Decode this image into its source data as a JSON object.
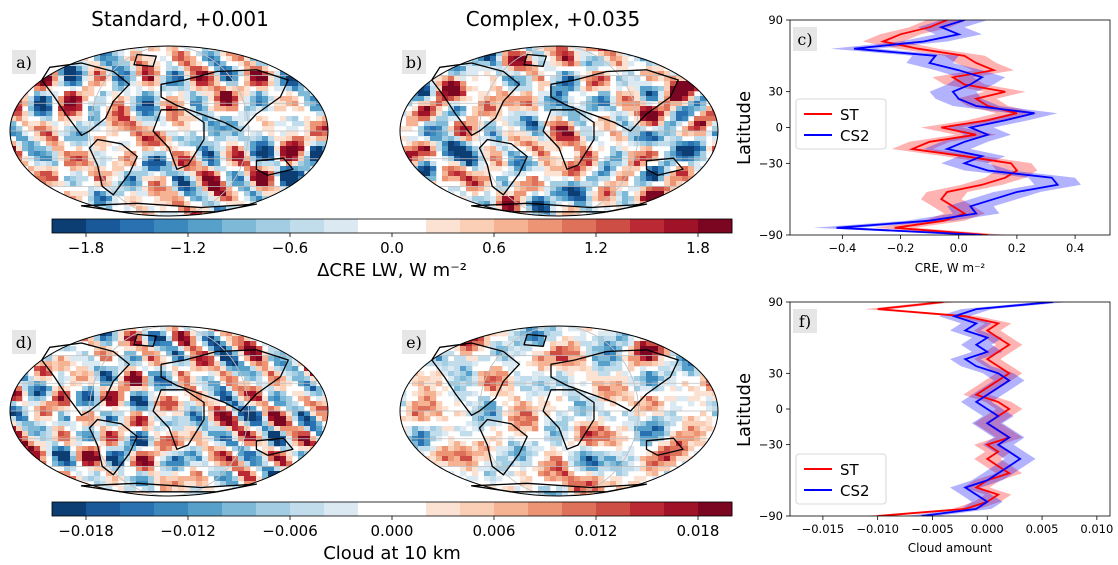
{
  "chart_data": [
    {
      "type": "heatmap",
      "panels": [
        {
          "letter": "a)",
          "title": "Standard, +0.001",
          "seed": 11
        },
        {
          "letter": "b)",
          "title": "Complex, +0.035",
          "seed": 23
        }
      ],
      "colorbar": {
        "label": "ΔCRE LW, W m⁻²",
        "vmin": -2.0,
        "vmax": 2.0,
        "levels": 20,
        "ticks": [
          -1.8,
          -1.2,
          -0.6,
          0.0,
          0.6,
          1.2,
          1.8
        ],
        "tick_labels": [
          "−1.8",
          "−1.2",
          "−0.6",
          "0.0",
          "0.6",
          "1.2",
          "1.8"
        ]
      }
    },
    {
      "type": "line",
      "letter": "c)",
      "xlabel": "CRE, W m⁻²",
      "ylabel": "Latitude",
      "xlim": [
        -0.58,
        0.52
      ],
      "ylim": [
        -90,
        90
      ],
      "xticks": [
        -0.4,
        -0.2,
        0.0,
        0.2,
        0.4
      ],
      "xtick_labels": [
        "−0.4",
        "−0.2",
        "0.0",
        "0.2",
        "0.4"
      ],
      "yticks": [
        -90,
        -30,
        0,
        30,
        90
      ],
      "ytick_labels": [
        "−90",
        "−30",
        "0",
        "30",
        "90"
      ],
      "legend_position": "center-left",
      "series": [
        {
          "name": "ST",
          "color": "#ff0000",
          "lat": [
            -90,
            -84,
            -78,
            -72,
            -66,
            -60,
            -54,
            -48,
            -42,
            -36,
            -30,
            -24,
            -18,
            -12,
            -6,
            0,
            6,
            12,
            18,
            24,
            30,
            36,
            42,
            48,
            54,
            60,
            66,
            72,
            78,
            84,
            90
          ],
          "x": [
            0.1,
            -0.22,
            -0.05,
            0.02,
            -0.02,
            -0.06,
            -0.04,
            0.08,
            0.16,
            0.2,
            0.18,
            0.02,
            -0.16,
            -0.1,
            0.06,
            -0.06,
            0.1,
            0.2,
            0.1,
            0.06,
            0.16,
            0.02,
            -0.02,
            0.12,
            0.06,
            0.02,
            -0.14,
            -0.26,
            -0.2,
            -0.1,
            -0.04
          ],
          "spread": 0.07
        },
        {
          "name": "CS2",
          "color": "#0000ff",
          "lat": [
            -90,
            -84,
            -78,
            -72,
            -66,
            -60,
            -54,
            -48,
            -42,
            -36,
            -30,
            -24,
            -18,
            -12,
            -6,
            0,
            6,
            12,
            18,
            24,
            30,
            36,
            42,
            48,
            54,
            60,
            66,
            72,
            78,
            84,
            90
          ],
          "x": [
            0.08,
            -0.42,
            -0.1,
            0.06,
            0.04,
            0.12,
            0.2,
            0.34,
            0.32,
            0.1,
            0.02,
            0.08,
            -0.04,
            0.02,
            0.1,
            0.04,
            0.16,
            0.26,
            0.06,
            0.0,
            -0.02,
            0.04,
            0.08,
            0.0,
            -0.1,
            -0.08,
            -0.36,
            -0.12,
            0.0,
            -0.06,
            0.02
          ],
          "spread": 0.08
        }
      ]
    },
    {
      "type": "heatmap",
      "panels": [
        {
          "letter": "d)",
          "seed": 37
        },
        {
          "letter": "e)",
          "seed": 53
        }
      ],
      "colorbar": {
        "label": "Cloud at 10 km",
        "vmin": -0.02,
        "vmax": 0.02,
        "levels": 20,
        "ticks": [
          -0.018,
          -0.012,
          -0.006,
          0.0,
          0.006,
          0.012,
          0.018
        ],
        "tick_labels": [
          "−0.018",
          "−0.012",
          "−0.006",
          "0.000",
          "0.006",
          "0.012",
          "0.018"
        ]
      }
    },
    {
      "type": "line",
      "letter": "f)",
      "xlabel": "Cloud amount",
      "ylabel": "Latitude",
      "xlim": [
        -0.018,
        0.0112
      ],
      "ylim": [
        -90,
        90
      ],
      "xticks": [
        -0.015,
        -0.01,
        -0.005,
        0.0,
        0.005,
        0.01
      ],
      "xtick_labels": [
        "−0.015",
        "−0.010",
        "−0.005",
        "0.000",
        "0.005",
        "0.010"
      ],
      "yticks": [
        -90,
        -30,
        0,
        30,
        90
      ],
      "ytick_labels": [
        "−90",
        "−30",
        "0",
        "30",
        "90"
      ],
      "legend_position": "lower-left",
      "series": [
        {
          "name": "ST",
          "color": "#ff0000",
          "lat": [
            -90,
            -84,
            -78,
            -72,
            -66,
            -60,
            -54,
            -48,
            -42,
            -36,
            -30,
            -24,
            -18,
            -12,
            -6,
            0,
            6,
            12,
            18,
            24,
            30,
            36,
            42,
            48,
            54,
            60,
            66,
            72,
            78,
            84,
            90
          ],
          "x": [
            -0.01,
            -0.002,
            0.0,
            0.001,
            -0.001,
            0.0,
            0.002,
            0.001,
            0.0,
            0.001,
            0.0,
            0.002,
            0.001,
            0.0,
            0.001,
            0.002,
            0.001,
            -0.001,
            0.0,
            0.001,
            0.002,
            0.001,
            0.0,
            0.001,
            0.002,
            0.001,
            0.0,
            0.001,
            -0.002,
            -0.01,
            -0.004
          ],
          "spread": 0.0012
        },
        {
          "name": "CS2",
          "color": "#0000ff",
          "lat": [
            -90,
            -84,
            -78,
            -72,
            -66,
            -60,
            -54,
            -48,
            -42,
            -36,
            -30,
            -24,
            -18,
            -12,
            -6,
            0,
            6,
            12,
            18,
            24,
            30,
            36,
            42,
            48,
            54,
            60,
            66,
            72,
            78,
            84,
            90
          ],
          "x": [
            -0.006,
            -0.001,
            0.0,
            -0.001,
            -0.002,
            0.0,
            0.001,
            0.002,
            0.003,
            0.002,
            0.001,
            0.002,
            0.001,
            0.0,
            0.001,
            0.0,
            -0.001,
            0.0,
            0.001,
            0.002,
            0.001,
            -0.001,
            -0.002,
            0.0,
            -0.001,
            0.0,
            -0.002,
            -0.001,
            -0.003,
            -0.001,
            0.006
          ],
          "spread": 0.0014
        }
      ]
    }
  ]
}
